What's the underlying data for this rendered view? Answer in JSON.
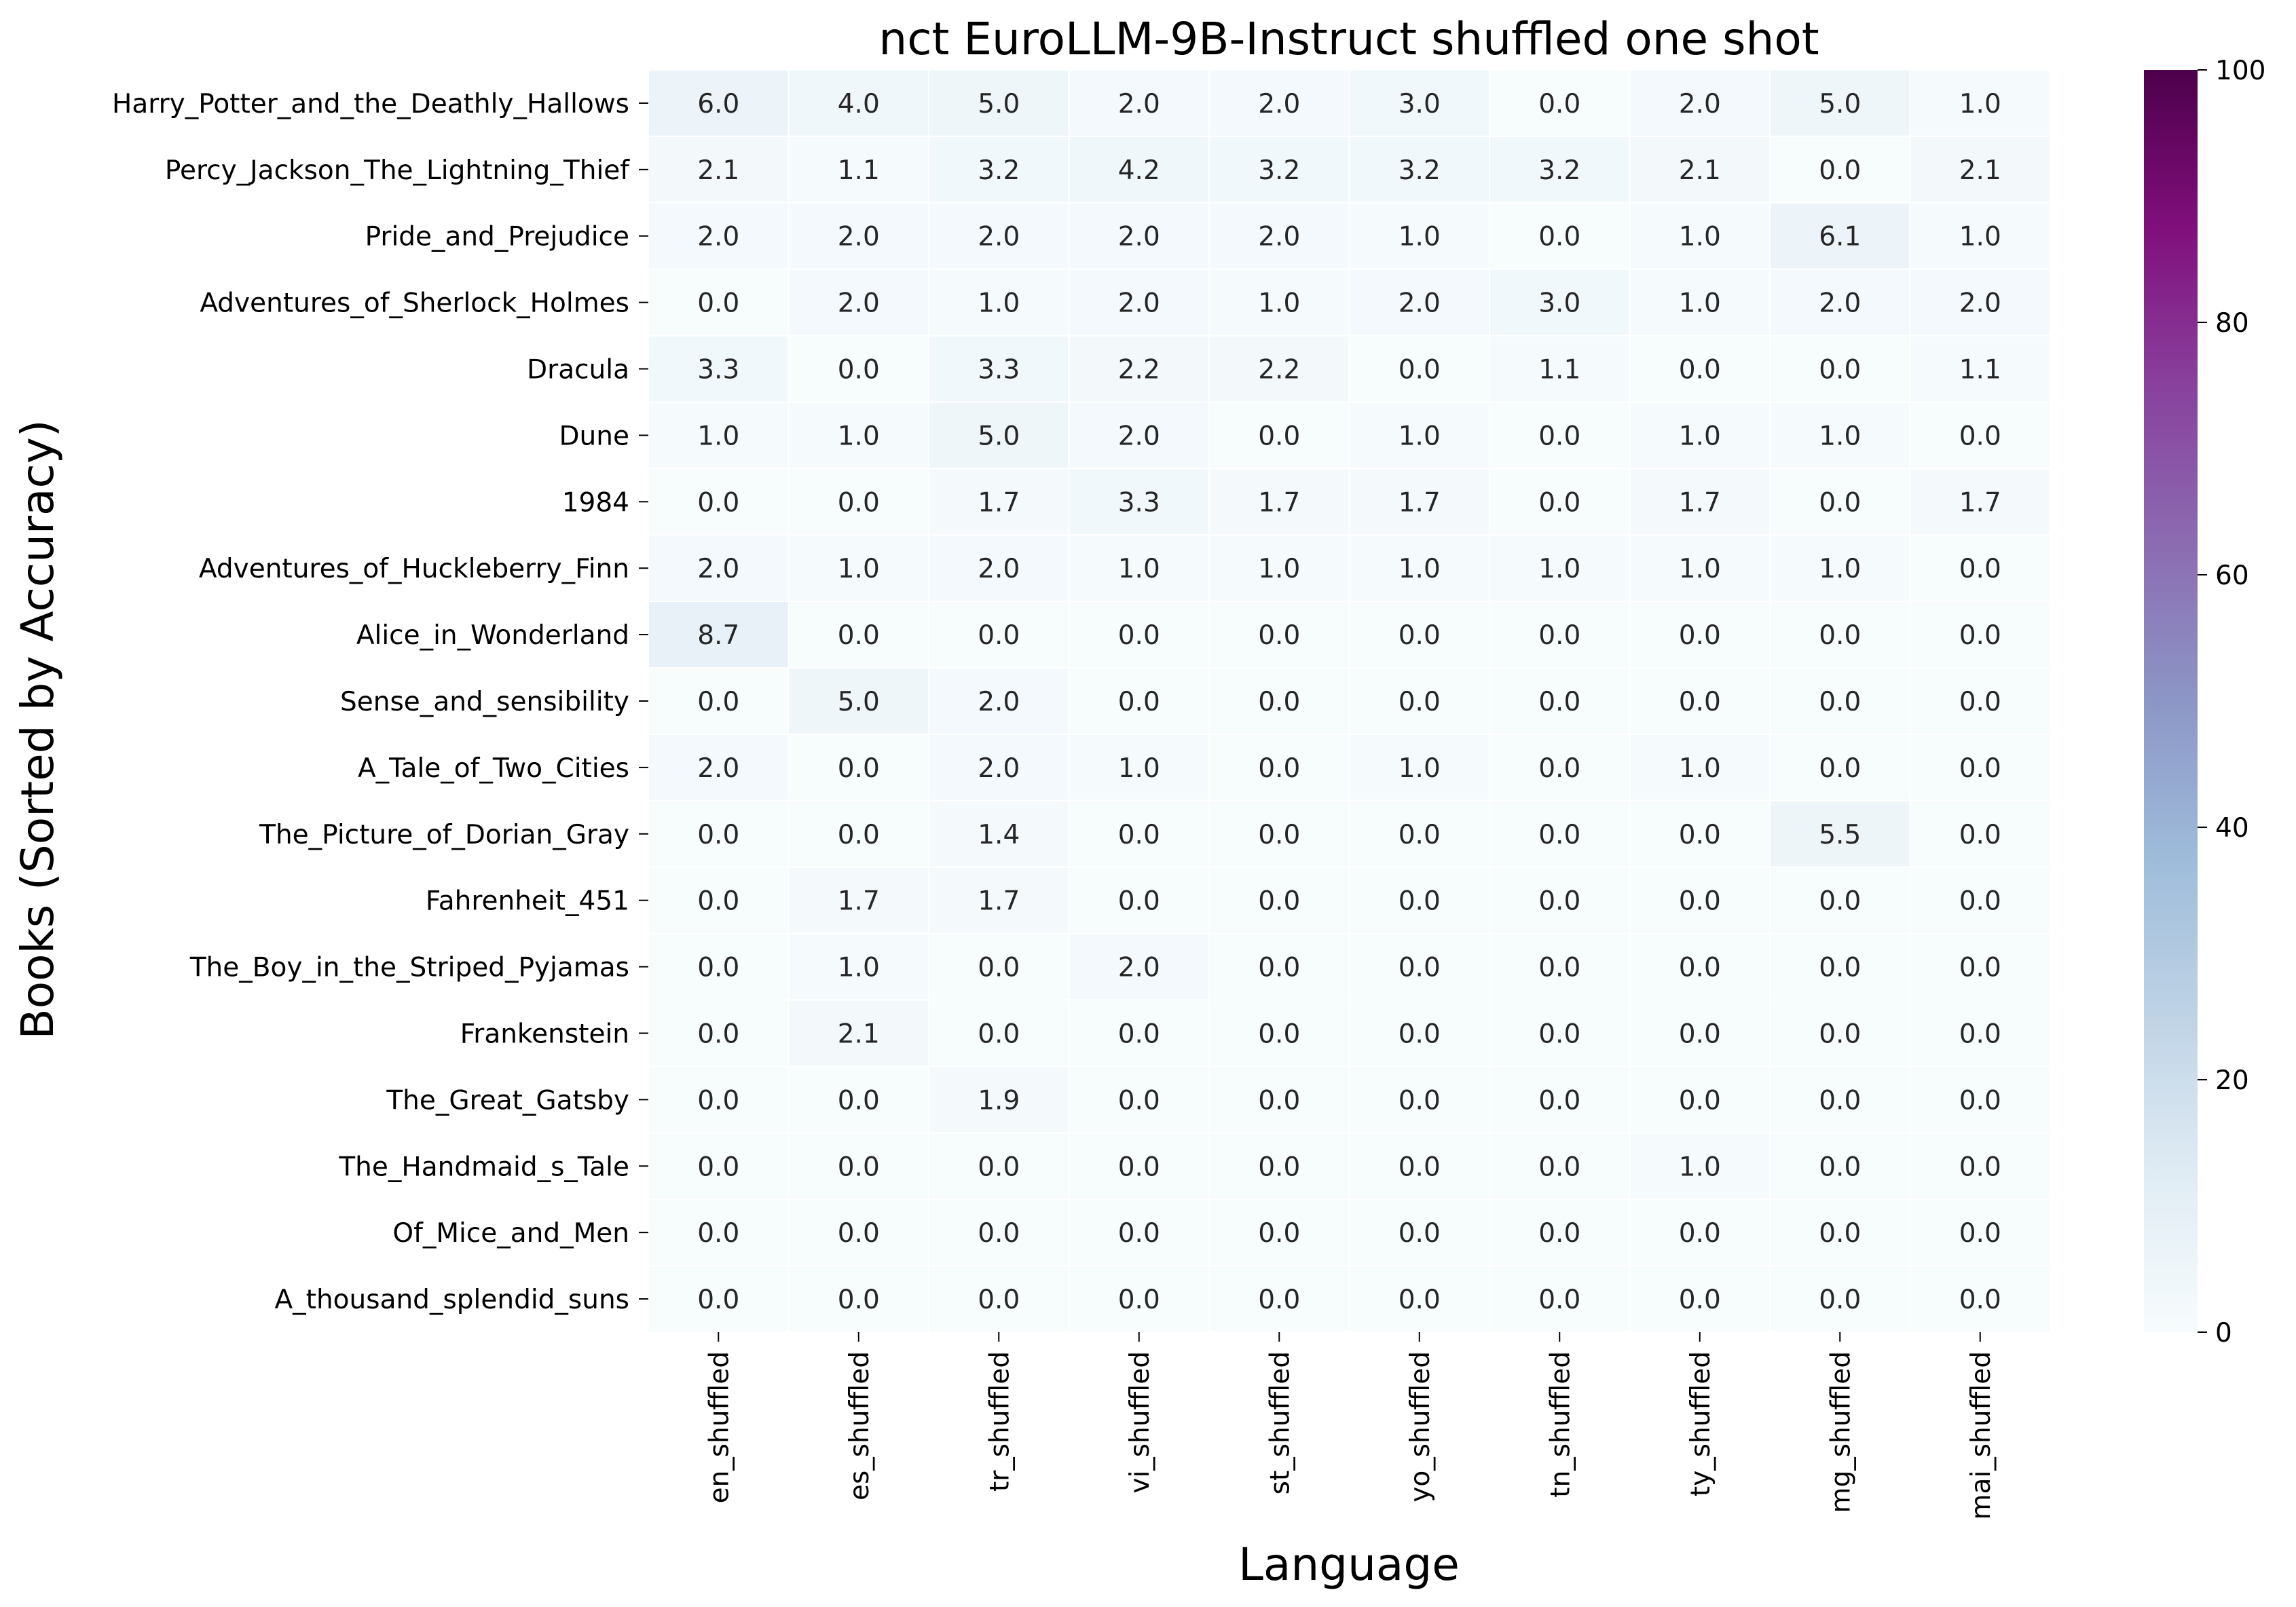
{
  "chart_data": {
    "type": "heatmap",
    "title": "nct EuroLLM-9B-Instruct shuffled one shot",
    "xlabel": "Language",
    "ylabel": "Books (Sorted by Accuracy)",
    "x": [
      "en_shuffled",
      "es_shuffled",
      "tr_shuffled",
      "vi_shuffled",
      "st_shuffled",
      "yo_shuffled",
      "tn_shuffled",
      "ty_shuffled",
      "mg_shuffled",
      "mai_shuffled"
    ],
    "y": [
      "Harry_Potter_and_the_Deathly_Hallows",
      "Percy_Jackson_The_Lightning_Thief",
      "Pride_and_Prejudice",
      "Adventures_of_Sherlock_Holmes",
      "Dracula",
      "Dune",
      "1984",
      "Adventures_of_Huckleberry_Finn",
      "Alice_in_Wonderland",
      "Sense_and_sensibility",
      "A_Tale_of_Two_Cities",
      "The_Picture_of_Dorian_Gray",
      "Fahrenheit_451",
      "The_Boy_in_the_Striped_Pyjamas",
      "Frankenstein",
      "The_Great_Gatsby",
      "The_Handmaid_s_Tale",
      "Of_Mice_and_Men",
      "A_thousand_splendid_suns"
    ],
    "values": [
      [
        6.0,
        4.0,
        5.0,
        2.0,
        2.0,
        3.0,
        0.0,
        2.0,
        5.0,
        1.0
      ],
      [
        2.1,
        1.1,
        3.2,
        4.2,
        3.2,
        3.2,
        3.2,
        2.1,
        0.0,
        2.1
      ],
      [
        2.0,
        2.0,
        2.0,
        2.0,
        2.0,
        1.0,
        0.0,
        1.0,
        6.1,
        1.0
      ],
      [
        0.0,
        2.0,
        1.0,
        2.0,
        1.0,
        2.0,
        3.0,
        1.0,
        2.0,
        2.0
      ],
      [
        3.3,
        0.0,
        3.3,
        2.2,
        2.2,
        0.0,
        1.1,
        0.0,
        0.0,
        1.1
      ],
      [
        1.0,
        1.0,
        5.0,
        2.0,
        0.0,
        1.0,
        0.0,
        1.0,
        1.0,
        0.0
      ],
      [
        0.0,
        0.0,
        1.7,
        3.3,
        1.7,
        1.7,
        0.0,
        1.7,
        0.0,
        1.7
      ],
      [
        2.0,
        1.0,
        2.0,
        1.0,
        1.0,
        1.0,
        1.0,
        1.0,
        1.0,
        0.0
      ],
      [
        8.7,
        0.0,
        0.0,
        0.0,
        0.0,
        0.0,
        0.0,
        0.0,
        0.0,
        0.0
      ],
      [
        0.0,
        5.0,
        2.0,
        0.0,
        0.0,
        0.0,
        0.0,
        0.0,
        0.0,
        0.0
      ],
      [
        2.0,
        0.0,
        2.0,
        1.0,
        0.0,
        1.0,
        0.0,
        1.0,
        0.0,
        0.0
      ],
      [
        0.0,
        0.0,
        1.4,
        0.0,
        0.0,
        0.0,
        0.0,
        0.0,
        5.5,
        0.0
      ],
      [
        0.0,
        1.7,
        1.7,
        0.0,
        0.0,
        0.0,
        0.0,
        0.0,
        0.0,
        0.0
      ],
      [
        0.0,
        1.0,
        0.0,
        2.0,
        0.0,
        0.0,
        0.0,
        0.0,
        0.0,
        0.0
      ],
      [
        0.0,
        2.1,
        0.0,
        0.0,
        0.0,
        0.0,
        0.0,
        0.0,
        0.0,
        0.0
      ],
      [
        0.0,
        0.0,
        1.9,
        0.0,
        0.0,
        0.0,
        0.0,
        0.0,
        0.0,
        0.0
      ],
      [
        0.0,
        0.0,
        0.0,
        0.0,
        0.0,
        0.0,
        0.0,
        1.0,
        0.0,
        0.0
      ],
      [
        0.0,
        0.0,
        0.0,
        0.0,
        0.0,
        0.0,
        0.0,
        0.0,
        0.0,
        0.0
      ],
      [
        0.0,
        0.0,
        0.0,
        0.0,
        0.0,
        0.0,
        0.0,
        0.0,
        0.0,
        0.0
      ]
    ],
    "colorbar": {
      "min": 0,
      "max": 100,
      "ticks": [
        0,
        20,
        40,
        60,
        80,
        100
      ],
      "colormap": "BuPu"
    },
    "value_format": "one decimal",
    "grid": false
  }
}
